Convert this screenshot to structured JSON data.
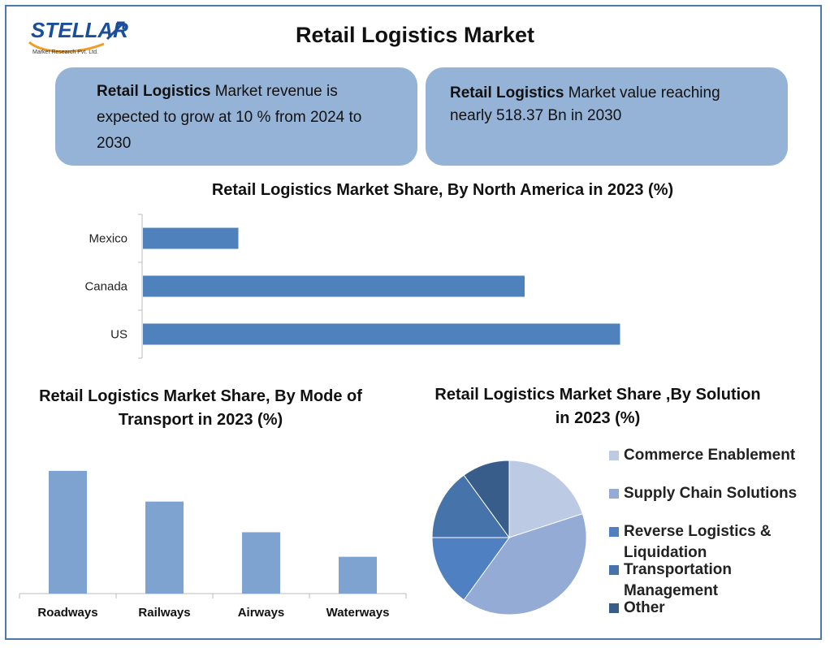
{
  "header": {
    "title": "Retail Logistics Market",
    "logo": {
      "name": "STELLAR",
      "tagline": "Market Research Pvt. Ltd."
    }
  },
  "info_boxes": [
    {
      "bold": "Retail Logistics",
      "text": " Market revenue is expected to grow at 10 % from 2024 to 2030"
    },
    {
      "bold": "Retail Logistics",
      "text": " Market value reaching nearly 518.37 Bn in 2030"
    }
  ],
  "colors": {
    "frame": "#4a7aa8",
    "box": "#95b3d7",
    "hbar": "#4f81bd",
    "vbar": "#7fa3d0"
  },
  "chart_data": [
    {
      "type": "bar",
      "orientation": "horizontal",
      "title": "Retail Logistics Market Share, By North America in 2023 (%)",
      "categories": [
        "Mexico",
        "Canada",
        "US"
      ],
      "values": [
        10,
        40,
        50
      ],
      "xlim": [
        0,
        60
      ],
      "grid": false
    },
    {
      "type": "bar",
      "orientation": "vertical",
      "title": "Retail Logistics Market Share, By Mode of Transport in 2023 (%)",
      "categories": [
        "Roadways",
        "Railways",
        "Airways",
        "Waterways"
      ],
      "values": [
        40,
        30,
        20,
        12
      ],
      "ylim": [
        0,
        45
      ],
      "grid": false
    },
    {
      "type": "pie",
      "title": "Retail Logistics Market Share ,By Solution  in 2023 (%)",
      "labels": [
        "Commerce Enablement",
        "Supply Chain Solutions",
        "Reverse Logistics & Liquidation",
        "Transportation Management",
        "Other"
      ],
      "values": [
        20,
        40,
        15,
        15,
        10
      ],
      "colors": [
        "#bccae3",
        "#94abd6",
        "#4f81c2",
        "#4674aa",
        "#385d8a"
      ],
      "legend_position": "right"
    }
  ]
}
